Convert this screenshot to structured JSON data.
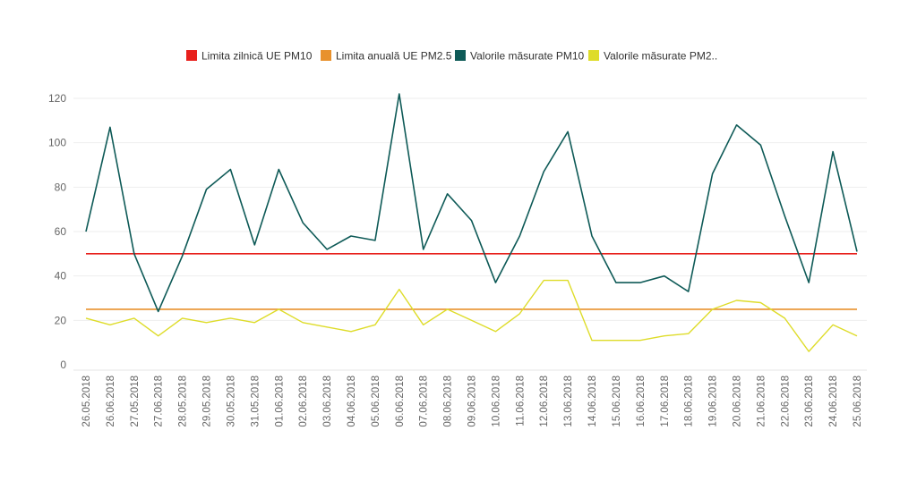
{
  "chart_data": {
    "type": "line",
    "title": "",
    "xlabel": "",
    "ylabel": "",
    "ylim": [
      0,
      120
    ],
    "yticks": [
      0,
      20,
      40,
      60,
      80,
      100,
      120
    ],
    "grid": true,
    "legend_position": "top-center",
    "categories": [
      "26.05.2018",
      "26.06.2018",
      "27.05.2018",
      "27.06.2018",
      "28.05.2018",
      "29.05.2018",
      "30.05.2018",
      "31.05.2018",
      "01.06.2018",
      "02.06.2018",
      "03.06.2018",
      "04.06.2018",
      "05.06.2018",
      "06.06.2018",
      "07.06.2018",
      "08.06.2018",
      "09.06.2018",
      "10.06.2018",
      "11.06.2018",
      "12.06.2018",
      "13.06.2018",
      "14.06.2018",
      "15.06.2018",
      "16.06.2018",
      "17.06.2018",
      "18.06.2018",
      "19.06.2018",
      "20.06.2018",
      "21.06.2018",
      "22.06.2018",
      "23.06.2018",
      "24.06.2018",
      "25.06.2018"
    ],
    "series": [
      {
        "name": "Limita zilnică UE PM10",
        "color": "#e8201c",
        "legend_label": "Limita zilnică UE PM10",
        "values": [
          50,
          50,
          50,
          50,
          50,
          50,
          50,
          50,
          50,
          50,
          50,
          50,
          50,
          50,
          50,
          50,
          50,
          50,
          50,
          50,
          50,
          50,
          50,
          50,
          50,
          50,
          50,
          50,
          50,
          50,
          50,
          50,
          50
        ]
      },
      {
        "name": "Limita anuală UE PM2.5",
        "color": "#e8912c",
        "legend_label": "Limita anuală UE PM2.5",
        "values": [
          25,
          25,
          25,
          25,
          25,
          25,
          25,
          25,
          25,
          25,
          25,
          25,
          25,
          25,
          25,
          25,
          25,
          25,
          25,
          25,
          25,
          25,
          25,
          25,
          25,
          25,
          25,
          25,
          25,
          25,
          25,
          25,
          25
        ]
      },
      {
        "name": "Valorile măsurate PM10",
        "color": "#0e5a57",
        "legend_label": "Valorile măsurate PM10",
        "values": [
          60,
          107,
          50,
          24,
          49,
          79,
          88,
          54,
          88,
          64,
          52,
          58,
          56,
          122,
          52,
          77,
          65,
          37,
          58,
          87,
          105,
          58,
          37,
          37,
          40,
          33,
          86,
          108,
          99,
          67,
          37,
          96,
          51
        ]
      },
      {
        "name": "Valorile măsurate PM2.5",
        "color": "#dedc29",
        "legend_label": "Valorile măsurate PM2..",
        "values": [
          21,
          18,
          21,
          13,
          21,
          19,
          21,
          19,
          25,
          19,
          17,
          15,
          18,
          34,
          18,
          25,
          20,
          15,
          23,
          38,
          38,
          11,
          11,
          11,
          13,
          14,
          25,
          29,
          28,
          21,
          6,
          18,
          13
        ]
      }
    ]
  }
}
